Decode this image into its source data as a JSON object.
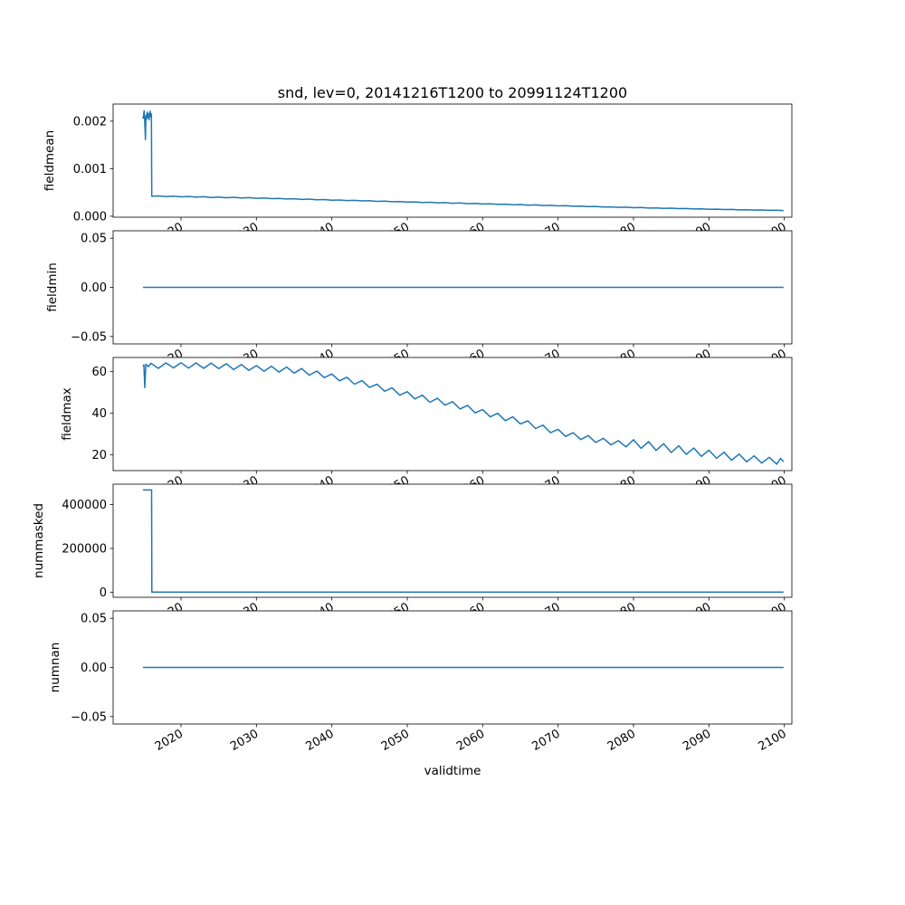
{
  "figure": {
    "title": "snd, lev=0, 20141216T1200 to 20991124T1200",
    "xlabel": "validtime",
    "background_color": "#ffffff",
    "line_color": "#1f77b4",
    "spine_color": "#000000"
  },
  "x_axis": {
    "xlim": [
      2011,
      2101
    ],
    "ticks": [
      2020,
      2030,
      2040,
      2050,
      2060,
      2070,
      2080,
      2090,
      2100
    ],
    "labels": [
      "2020",
      "2030",
      "2040",
      "2050",
      "2060",
      "2070",
      "2080",
      "2090",
      "2100"
    ],
    "label": "validtime",
    "tick_label_rotation_deg": 30
  },
  "chart_data": [
    {
      "type": "line",
      "ylabel": "fieldmean",
      "ylim": [
        -2e-05,
        0.00236
      ],
      "yticks": [
        {
          "v": 0.0,
          "label": "0.000"
        },
        {
          "v": 0.001,
          "label": "0.001"
        },
        {
          "v": 0.002,
          "label": "0.002"
        }
      ],
      "points": [
        [
          2014.96,
          0.00205
        ],
        [
          2015.04,
          0.00213
        ],
        [
          2015.12,
          0.00222
        ],
        [
          2015.2,
          0.00196
        ],
        [
          2015.28,
          0.00161
        ],
        [
          2015.36,
          0.00212
        ],
        [
          2015.44,
          0.00204
        ],
        [
          2015.52,
          0.00219
        ],
        [
          2015.6,
          0.00208
        ],
        [
          2015.68,
          0.00216
        ],
        [
          2015.76,
          0.00203
        ],
        [
          2015.84,
          0.00214
        ],
        [
          2015.92,
          0.00221
        ],
        [
          2016.0,
          0.00209
        ],
        [
          2016.08,
          0.00215
        ],
        [
          2016.12,
          0.00042
        ],
        [
          2017,
          0.000428
        ],
        [
          2018,
          0.000412
        ],
        [
          2019,
          0.000422
        ],
        [
          2020,
          0.000408
        ],
        [
          2021,
          0.000416
        ],
        [
          2022,
          0.000402
        ],
        [
          2023,
          0.00041
        ],
        [
          2024,
          0.000396
        ],
        [
          2025,
          0.000404
        ],
        [
          2026,
          0.00039
        ],
        [
          2027,
          0.000398
        ],
        [
          2028,
          0.000384
        ],
        [
          2029,
          0.000392
        ],
        [
          2030,
          0.000378
        ],
        [
          2031,
          0.000384
        ],
        [
          2032,
          0.00037
        ],
        [
          2033,
          0.000376
        ],
        [
          2034,
          0.000362
        ],
        [
          2035,
          0.000368
        ],
        [
          2036,
          0.000354
        ],
        [
          2037,
          0.00036
        ],
        [
          2038,
          0.000346
        ],
        [
          2039,
          0.000352
        ],
        [
          2040,
          0.000338
        ],
        [
          2041,
          0.000342
        ],
        [
          2042,
          0.00033
        ],
        [
          2043,
          0.000334
        ],
        [
          2044,
          0.000322
        ],
        [
          2045,
          0.000326
        ],
        [
          2046,
          0.000314
        ],
        [
          2047,
          0.000318
        ],
        [
          2048,
          0.000306
        ],
        [
          2049,
          0.00031
        ],
        [
          2050,
          0.000298
        ],
        [
          2051,
          0.000302
        ],
        [
          2052,
          0.00029
        ],
        [
          2053,
          0.000294
        ],
        [
          2054,
          0.000282
        ],
        [
          2055,
          0.000286
        ],
        [
          2056,
          0.000274
        ],
        [
          2057,
          0.000278
        ],
        [
          2058,
          0.000266
        ],
        [
          2059,
          0.00027
        ],
        [
          2060,
          0.000258
        ],
        [
          2061,
          0.000262
        ],
        [
          2062,
          0.00025
        ],
        [
          2063,
          0.000254
        ],
        [
          2064,
          0.000242
        ],
        [
          2065,
          0.000246
        ],
        [
          2066,
          0.000234
        ],
        [
          2067,
          0.000238
        ],
        [
          2068,
          0.000226
        ],
        [
          2069,
          0.00023
        ],
        [
          2070,
          0.000218
        ],
        [
          2071,
          0.000222
        ],
        [
          2072,
          0.00021
        ],
        [
          2073,
          0.000214
        ],
        [
          2074,
          0.000202
        ],
        [
          2075,
          0.000206
        ],
        [
          2076,
          0.000194
        ],
        [
          2077,
          0.000198
        ],
        [
          2078,
          0.000187
        ],
        [
          2079,
          0.000191
        ],
        [
          2080,
          0.00018
        ],
        [
          2081,
          0.000184
        ],
        [
          2082,
          0.000173
        ],
        [
          2083,
          0.000177
        ],
        [
          2084,
          0.000166
        ],
        [
          2085,
          0.00017
        ],
        [
          2086,
          0.00016
        ],
        [
          2087,
          0.000163
        ],
        [
          2088,
          0.000153
        ],
        [
          2089,
          0.000156
        ],
        [
          2090,
          0.000147
        ],
        [
          2091,
          0.00015
        ],
        [
          2092,
          0.000141
        ],
        [
          2093,
          0.000144
        ],
        [
          2094,
          0.000135
        ],
        [
          2095,
          0.000138
        ],
        [
          2096,
          0.00013
        ],
        [
          2097,
          0.000132
        ],
        [
          2098,
          0.000124
        ],
        [
          2099,
          0.000126
        ],
        [
          2099.9,
          0.000118
        ]
      ]
    },
    {
      "type": "line",
      "ylabel": "fieldmin",
      "ylim": [
        -0.0575,
        0.0575
      ],
      "yticks": [
        {
          "v": -0.05,
          "label": "−0.05"
        },
        {
          "v": 0.0,
          "label": "0.00"
        },
        {
          "v": 0.05,
          "label": "0.05"
        }
      ],
      "points": [
        [
          2014.96,
          0.0
        ],
        [
          2099.9,
          0.0
        ]
      ]
    },
    {
      "type": "line",
      "ylabel": "fieldmax",
      "ylim": [
        12.5,
        66.8
      ],
      "yticks": [
        {
          "v": 20,
          "label": "20"
        },
        {
          "v": 40,
          "label": "40"
        },
        {
          "v": 60,
          "label": "60"
        }
      ],
      "points": [
        [
          2014.96,
          62.5
        ],
        [
          2015.08,
          63.3
        ],
        [
          2015.2,
          52.3
        ],
        [
          2015.35,
          63.5
        ],
        [
          2015.7,
          62.4
        ],
        [
          2016,
          64.0
        ],
        [
          2017,
          61.6
        ],
        [
          2018,
          64.2
        ],
        [
          2019,
          61.8
        ],
        [
          2020,
          64.3
        ],
        [
          2021,
          61.7
        ],
        [
          2022,
          64.2
        ],
        [
          2023,
          61.6
        ],
        [
          2024,
          64.1
        ],
        [
          2025,
          61.4
        ],
        [
          2026,
          63.8
        ],
        [
          2027,
          61.0
        ],
        [
          2028,
          63.4
        ],
        [
          2029,
          60.6
        ],
        [
          2030,
          62.9
        ],
        [
          2031,
          60.2
        ],
        [
          2032,
          62.6
        ],
        [
          2033,
          59.8
        ],
        [
          2034,
          62.2
        ],
        [
          2035,
          59.3
        ],
        [
          2036,
          61.5
        ],
        [
          2037,
          58.3
        ],
        [
          2038,
          60.3
        ],
        [
          2039,
          57.1
        ],
        [
          2040,
          58.9
        ],
        [
          2041,
          55.6
        ],
        [
          2042,
          57.3
        ],
        [
          2043,
          54.0
        ],
        [
          2044,
          55.7
        ],
        [
          2045,
          52.4
        ],
        [
          2046,
          54.0
        ],
        [
          2047,
          50.6
        ],
        [
          2048,
          52.2
        ],
        [
          2049,
          48.7
        ],
        [
          2050,
          50.4
        ],
        [
          2051,
          46.9
        ],
        [
          2052,
          48.7
        ],
        [
          2053,
          45.3
        ],
        [
          2054,
          47.2
        ],
        [
          2055,
          43.9
        ],
        [
          2056,
          45.6
        ],
        [
          2057,
          42.1
        ],
        [
          2058,
          43.8
        ],
        [
          2059,
          40.2
        ],
        [
          2060,
          41.8
        ],
        [
          2061,
          38.3
        ],
        [
          2062,
          40.0
        ],
        [
          2063,
          36.5
        ],
        [
          2064,
          38.3
        ],
        [
          2065,
          34.9
        ],
        [
          2066,
          36.4
        ],
        [
          2067,
          32.7
        ],
        [
          2068,
          34.3
        ],
        [
          2069,
          30.7
        ],
        [
          2070,
          32.3
        ],
        [
          2071,
          28.9
        ],
        [
          2072,
          30.7
        ],
        [
          2073,
          27.4
        ],
        [
          2074,
          29.3
        ],
        [
          2075,
          26.0
        ],
        [
          2076,
          28.0
        ],
        [
          2077,
          24.9
        ],
        [
          2078,
          26.9
        ],
        [
          2079,
          23.9
        ],
        [
          2080,
          27.3
        ],
        [
          2081,
          23.2
        ],
        [
          2082,
          26.4
        ],
        [
          2083,
          22.2
        ],
        [
          2084,
          25.4
        ],
        [
          2085,
          21.2
        ],
        [
          2086,
          24.4
        ],
        [
          2087,
          20.3
        ],
        [
          2088,
          23.3
        ],
        [
          2089,
          19.3
        ],
        [
          2090,
          22.3
        ],
        [
          2091,
          18.4
        ],
        [
          2092,
          21.3
        ],
        [
          2093,
          17.5
        ],
        [
          2094,
          20.4
        ],
        [
          2095,
          16.7
        ],
        [
          2096,
          19.6
        ],
        [
          2097,
          16.1
        ],
        [
          2098,
          18.9
        ],
        [
          2099,
          15.6
        ],
        [
          2099.5,
          18.3
        ],
        [
          2099.9,
          16.8
        ]
      ]
    },
    {
      "type": "line",
      "ylabel": "nummasked",
      "ylim": [
        -23500,
        493500
      ],
      "yticks": [
        {
          "v": 0,
          "label": "0"
        },
        {
          "v": 200000,
          "label": "200000"
        },
        {
          "v": 400000,
          "label": "400000"
        }
      ],
      "points": [
        [
          2014.96,
          467000
        ],
        [
          2016.1,
          467000
        ],
        [
          2016.14,
          0
        ],
        [
          2099.9,
          0
        ]
      ]
    },
    {
      "type": "line",
      "ylabel": "numnan",
      "ylim": [
        -0.0575,
        0.0575
      ],
      "yticks": [
        {
          "v": -0.05,
          "label": "−0.05"
        },
        {
          "v": 0.0,
          "label": "0.00"
        },
        {
          "v": 0.05,
          "label": "0.05"
        }
      ],
      "points": [
        [
          2014.96,
          0.0
        ],
        [
          2099.9,
          0.0
        ]
      ]
    }
  ]
}
